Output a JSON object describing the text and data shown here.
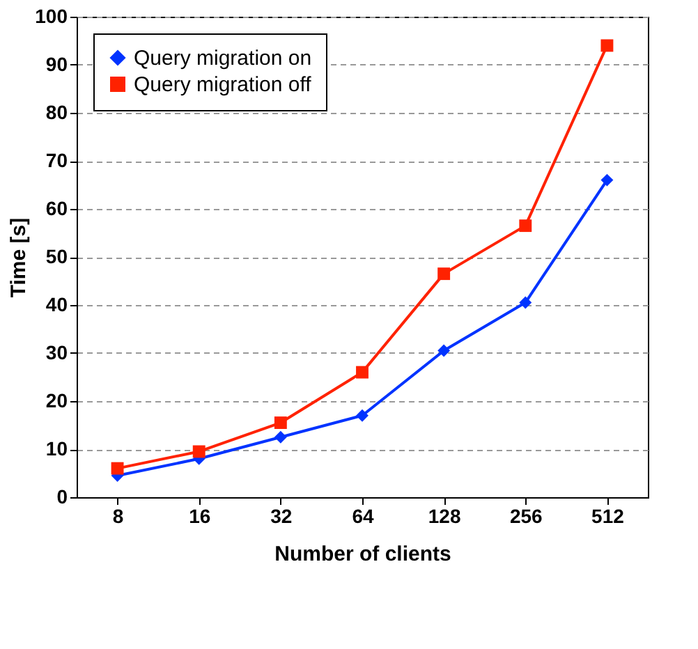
{
  "chart_data": {
    "type": "line",
    "xlabel": "Number of clients",
    "ylabel": "Time [s]",
    "categories": [
      "8",
      "16",
      "32",
      "64",
      "128",
      "256",
      "512"
    ],
    "series": [
      {
        "name": "Query migration on",
        "color": "#0033ff",
        "marker": "diamond",
        "values": [
          4.5,
          8,
          12.5,
          17,
          30.5,
          40.5,
          66
        ]
      },
      {
        "name": "Query migration off",
        "color": "#ff2200",
        "marker": "square",
        "values": [
          6,
          9.5,
          15.5,
          26,
          46.5,
          56.5,
          94
        ]
      }
    ],
    "ylim": [
      0,
      100
    ],
    "yticks": [
      0,
      10,
      20,
      30,
      40,
      50,
      60,
      70,
      80,
      90,
      100
    ],
    "grid": "y",
    "legend": "top left"
  }
}
